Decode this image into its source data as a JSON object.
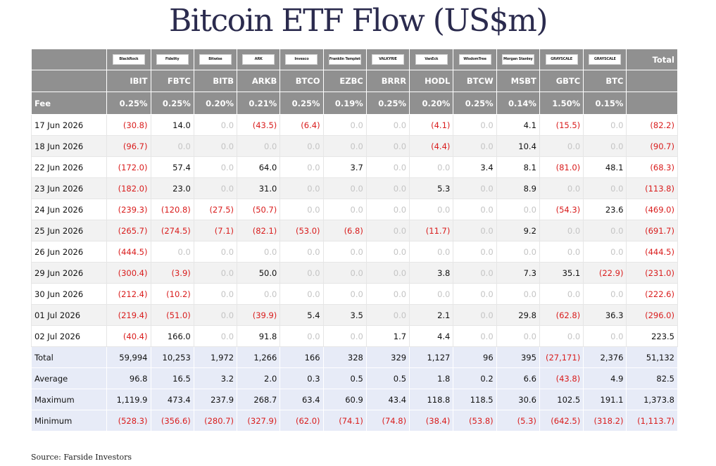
{
  "title": "Bitcoin ETF Flow (US$m)",
  "source": "Source: Farside Investors",
  "colors": {
    "header_bg": "#909090",
    "negative": "#d91c1c",
    "zero": "#c4c4c4",
    "summary_bg": "#e7ebf7"
  },
  "logos": [
    "BlackRock",
    "Fidelity",
    "Bitwise",
    "ARK",
    "Invesco",
    "Franklin Templeton",
    "VALKYRIE",
    "VanEck",
    "WisdomTree",
    "Morgan Stanley",
    "GRAYSCALE",
    "GRAYSCALE"
  ],
  "total_header": "Total",
  "tickers": [
    "IBIT",
    "FBTC",
    "BITB",
    "ARKB",
    "BTCO",
    "EZBC",
    "BRRR",
    "HODL",
    "BTCW",
    "MSBT",
    "GBTC",
    "BTC"
  ],
  "fee": {
    "label": "Fee",
    "values": [
      "0.25%",
      "0.25%",
      "0.20%",
      "0.21%",
      "0.25%",
      "0.19%",
      "0.25%",
      "0.20%",
      "0.25%",
      "0.14%",
      "1.50%",
      "0.15%",
      ""
    ]
  },
  "rows": [
    {
      "date": "17 Jun 2026",
      "values": [
        "(30.8)",
        "14.0",
        "0.0",
        "(43.5)",
        "(6.4)",
        "0.0",
        "0.0",
        "(4.1)",
        "0.0",
        "4.1",
        "(15.5)",
        "0.0",
        "(82.2)"
      ]
    },
    {
      "date": "18 Jun 2026",
      "values": [
        "(96.7)",
        "0.0",
        "0.0",
        "0.0",
        "0.0",
        "0.0",
        "0.0",
        "(4.4)",
        "0.0",
        "10.4",
        "0.0",
        "0.0",
        "(90.7)"
      ]
    },
    {
      "date": "22 Jun 2026",
      "values": [
        "(172.0)",
        "57.4",
        "0.0",
        "64.0",
        "0.0",
        "3.7",
        "0.0",
        "0.0",
        "3.4",
        "8.1",
        "(81.0)",
        "48.1",
        "(68.3)"
      ]
    },
    {
      "date": "23 Jun 2026",
      "values": [
        "(182.0)",
        "23.0",
        "0.0",
        "31.0",
        "0.0",
        "0.0",
        "0.0",
        "5.3",
        "0.0",
        "8.9",
        "0.0",
        "0.0",
        "(113.8)"
      ]
    },
    {
      "date": "24 Jun 2026",
      "values": [
        "(239.3)",
        "(120.8)",
        "(27.5)",
        "(50.7)",
        "0.0",
        "0.0",
        "0.0",
        "0.0",
        "0.0",
        "0.0",
        "(54.3)",
        "23.6",
        "(469.0)"
      ]
    },
    {
      "date": "25 Jun 2026",
      "values": [
        "(265.7)",
        "(274.5)",
        "(7.1)",
        "(82.1)",
        "(53.0)",
        "(6.8)",
        "0.0",
        "(11.7)",
        "0.0",
        "9.2",
        "0.0",
        "0.0",
        "(691.7)"
      ]
    },
    {
      "date": "26 Jun 2026",
      "values": [
        "(444.5)",
        "0.0",
        "0.0",
        "0.0",
        "0.0",
        "0.0",
        "0.0",
        "0.0",
        "0.0",
        "0.0",
        "0.0",
        "0.0",
        "(444.5)"
      ]
    },
    {
      "date": "29 Jun 2026",
      "values": [
        "(300.4)",
        "(3.9)",
        "0.0",
        "50.0",
        "0.0",
        "0.0",
        "0.0",
        "3.8",
        "0.0",
        "7.3",
        "35.1",
        "(22.9)",
        "(231.0)"
      ]
    },
    {
      "date": "30 Jun 2026",
      "values": [
        "(212.4)",
        "(10.2)",
        "0.0",
        "0.0",
        "0.0",
        "0.0",
        "0.0",
        "0.0",
        "0.0",
        "0.0",
        "0.0",
        "0.0",
        "(222.6)"
      ]
    },
    {
      "date": "01 Jul 2026",
      "values": [
        "(219.4)",
        "(51.0)",
        "0.0",
        "(39.9)",
        "5.4",
        "3.5",
        "0.0",
        "2.1",
        "0.0",
        "29.8",
        "(62.8)",
        "36.3",
        "(296.0)"
      ]
    },
    {
      "date": "02 Jul 2026",
      "values": [
        "(40.4)",
        "166.0",
        "0.0",
        "91.8",
        "0.0",
        "0.0",
        "1.7",
        "4.4",
        "0.0",
        "0.0",
        "0.0",
        "0.0",
        "223.5"
      ]
    }
  ],
  "summary": [
    {
      "label": "Total",
      "values": [
        "59,994",
        "10,253",
        "1,972",
        "1,266",
        "166",
        "328",
        "329",
        "1,127",
        "96",
        "395",
        "(27,171)",
        "2,376",
        "51,132"
      ]
    },
    {
      "label": "Average",
      "values": [
        "96.8",
        "16.5",
        "3.2",
        "2.0",
        "0.3",
        "0.5",
        "0.5",
        "1.8",
        "0.2",
        "6.6",
        "(43.8)",
        "4.9",
        "82.5"
      ]
    },
    {
      "label": "Maximum",
      "values": [
        "1,119.9",
        "473.4",
        "237.9",
        "268.7",
        "63.4",
        "60.9",
        "43.4",
        "118.8",
        "118.5",
        "30.6",
        "102.5",
        "191.1",
        "1,373.8"
      ]
    },
    {
      "label": "Minimum",
      "values": [
        "(528.3)",
        "(356.6)",
        "(280.7)",
        "(327.9)",
        "(62.0)",
        "(74.1)",
        "(74.8)",
        "(38.4)",
        "(53.8)",
        "(5.3)",
        "(642.5)",
        "(318.2)",
        "(1,113.7)"
      ]
    }
  ]
}
